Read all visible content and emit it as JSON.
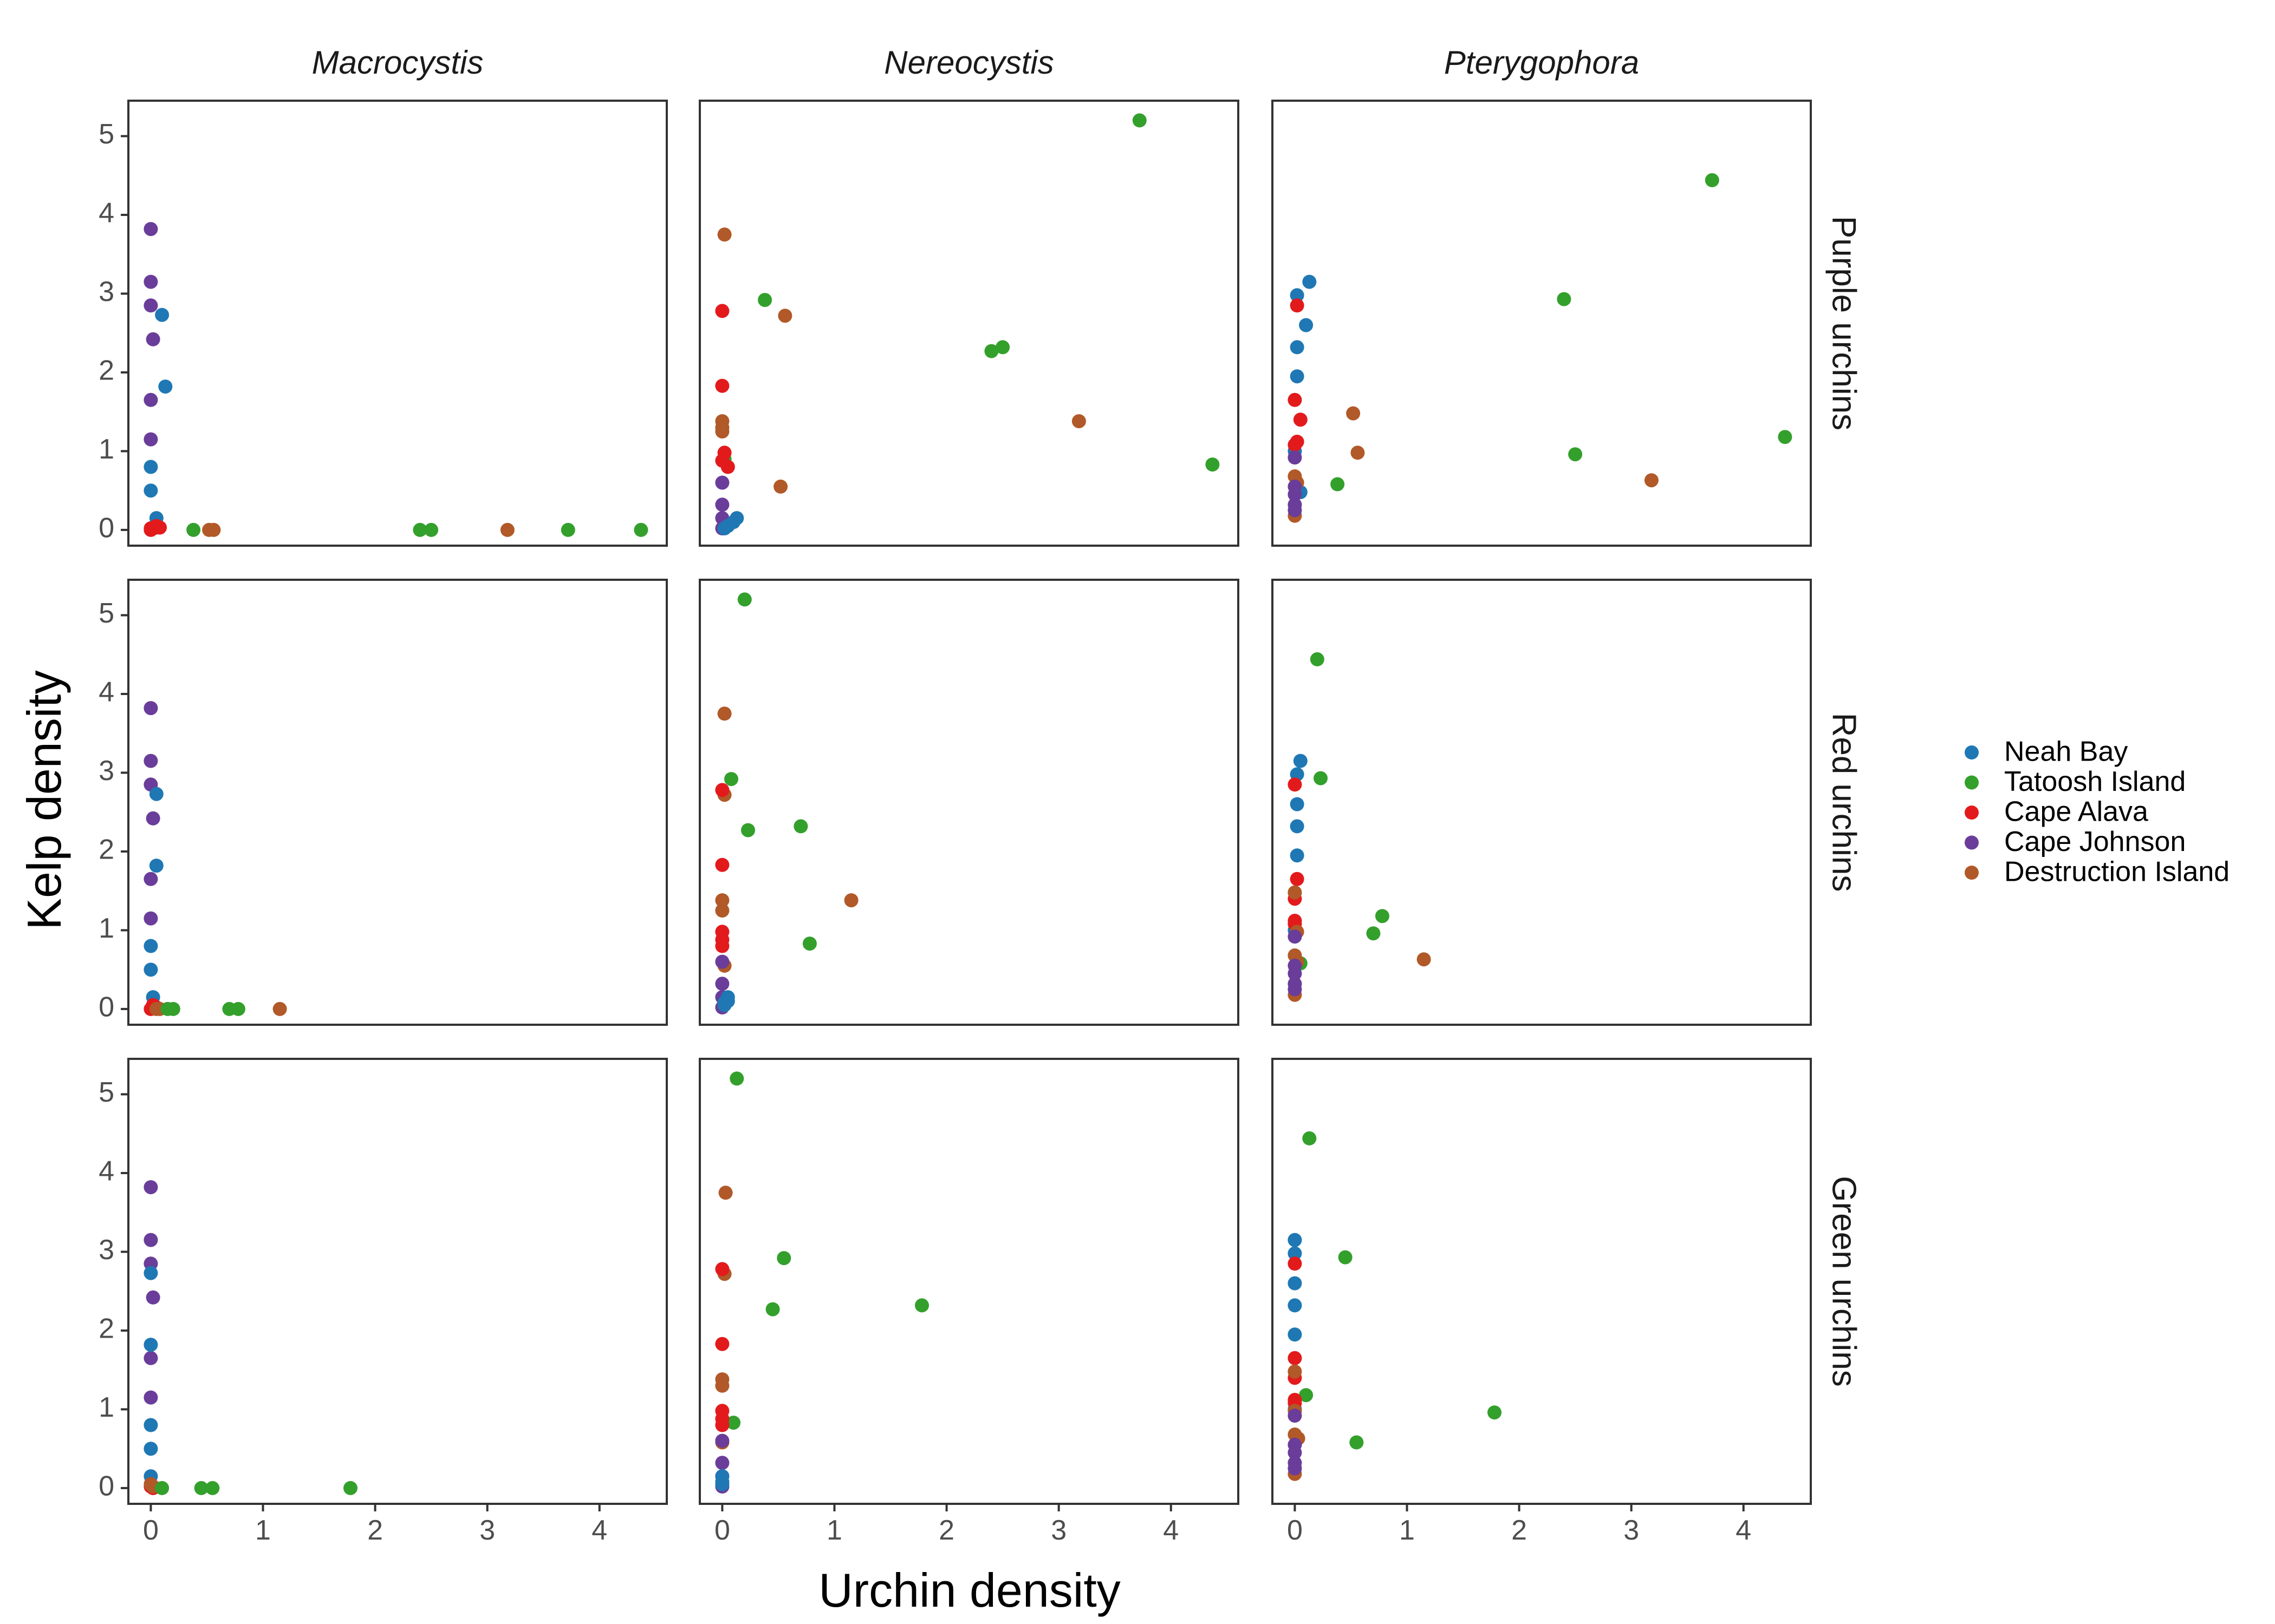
{
  "chart_data": {
    "type": "scatter",
    "xlabel": "Urchin density",
    "ylabel": "Kelp density",
    "xlim": [
      -0.2,
      4.6
    ],
    "ylim": [
      -0.2,
      5.45
    ],
    "x_ticks": [
      0,
      1,
      2,
      3,
      4
    ],
    "y_ticks": [
      0,
      1,
      2,
      3,
      4,
      5
    ],
    "grid": false,
    "legend_position": "right",
    "columns": [
      "Macrocystis",
      "Nereocystis",
      "Pterygophora"
    ],
    "rows": [
      "Purple urchins",
      "Red urchins",
      "Green urchins"
    ],
    "series": [
      {
        "name": "Neah Bay",
        "color": "#1f78b4"
      },
      {
        "name": "Tatoosh Island",
        "color": "#33a02c"
      },
      {
        "name": "Cape Alava",
        "color": "#e31a1c"
      },
      {
        "name": "Cape Johnson",
        "color": "#6a3d9a"
      },
      {
        "name": "Destruction Island",
        "color": "#b15928"
      }
    ],
    "panels": [
      {
        "row": 0,
        "col": 0,
        "points": [
          [
            3,
            0,
            3.82
          ],
          [
            3,
            0,
            3.15
          ],
          [
            3,
            0,
            2.85
          ],
          [
            3,
            0.02,
            2.42
          ],
          [
            3,
            0,
            1.65
          ],
          [
            3,
            0,
            1.15
          ],
          [
            3,
            0.02,
            0.03
          ],
          [
            0,
            0.1,
            2.73
          ],
          [
            0,
            0.13,
            1.82
          ],
          [
            0,
            0,
            0.8
          ],
          [
            0,
            0,
            0.5
          ],
          [
            0,
            0.05,
            0.15
          ],
          [
            0,
            0.05,
            0.03
          ],
          [
            2,
            0,
            0
          ],
          [
            2,
            0.02,
            0.02
          ],
          [
            2,
            0.05,
            0.05
          ],
          [
            2,
            0.08,
            0.03
          ],
          [
            2,
            0,
            0.02
          ],
          [
            1,
            0.38,
            0
          ],
          [
            1,
            2.4,
            0
          ],
          [
            1,
            2.5,
            0
          ],
          [
            1,
            3.72,
            0
          ],
          [
            1,
            4.37,
            0
          ],
          [
            4,
            0.52,
            0
          ],
          [
            4,
            0.56,
            0
          ],
          [
            4,
            3.18,
            0
          ]
        ]
      },
      {
        "row": 0,
        "col": 1,
        "points": [
          [
            1,
            3.72,
            5.2
          ],
          [
            1,
            0.38,
            2.92
          ],
          [
            1,
            2.4,
            2.27
          ],
          [
            1,
            2.5,
            2.32
          ],
          [
            1,
            4.37,
            0.83
          ],
          [
            1,
            0.02,
            0.9
          ],
          [
            4,
            0.02,
            3.75
          ],
          [
            4,
            0.56,
            2.72
          ],
          [
            4,
            3.18,
            1.38
          ],
          [
            4,
            0.52,
            0.55
          ],
          [
            4,
            0,
            1.38
          ],
          [
            4,
            0,
            1.3
          ],
          [
            4,
            0,
            1.25
          ],
          [
            2,
            0,
            2.78
          ],
          [
            2,
            0,
            1.83
          ],
          [
            2,
            0.02,
            0.98
          ],
          [
            2,
            0,
            0.88
          ],
          [
            2,
            0.05,
            0.8
          ],
          [
            3,
            0,
            0.6
          ],
          [
            3,
            0,
            0.32
          ],
          [
            3,
            0,
            0.15
          ],
          [
            3,
            0,
            0.02
          ],
          [
            3,
            0.02,
            0.08
          ],
          [
            0,
            0.13,
            0.15
          ],
          [
            0,
            0.05,
            0.05
          ],
          [
            0,
            0.1,
            0.1
          ],
          [
            0,
            0.02,
            0.02
          ]
        ]
      },
      {
        "row": 0,
        "col": 2,
        "points": [
          [
            1,
            3.72,
            4.44
          ],
          [
            1,
            2.4,
            2.93
          ],
          [
            1,
            4.37,
            1.18
          ],
          [
            1,
            2.5,
            0.96
          ],
          [
            1,
            0.38,
            0.58
          ],
          [
            0,
            0.13,
            3.15
          ],
          [
            0,
            0.02,
            2.98
          ],
          [
            0,
            0.1,
            2.6
          ],
          [
            0,
            0.02,
            2.32
          ],
          [
            0,
            0.02,
            1.95
          ],
          [
            0,
            0,
            1.0
          ],
          [
            0,
            0.05,
            0.48
          ],
          [
            2,
            0.02,
            2.85
          ],
          [
            2,
            0,
            1.65
          ],
          [
            2,
            0.05,
            1.4
          ],
          [
            2,
            0.02,
            1.12
          ],
          [
            2,
            0,
            1.08
          ],
          [
            4,
            0.52,
            1.48
          ],
          [
            4,
            0.56,
            0.98
          ],
          [
            4,
            3.18,
            0.63
          ],
          [
            4,
            0,
            0.68
          ],
          [
            4,
            0.02,
            0.6
          ],
          [
            4,
            0,
            0.18
          ],
          [
            3,
            0,
            0.92
          ],
          [
            3,
            0,
            0.55
          ],
          [
            3,
            0,
            0.45
          ],
          [
            3,
            0,
            0.32
          ],
          [
            3,
            0,
            0.25
          ]
        ]
      },
      {
        "row": 1,
        "col": 0,
        "points": [
          [
            3,
            0,
            3.82
          ],
          [
            3,
            0,
            3.15
          ],
          [
            3,
            0,
            2.85
          ],
          [
            3,
            0.02,
            2.42
          ],
          [
            3,
            0,
            1.65
          ],
          [
            3,
            0,
            1.15
          ],
          [
            3,
            0.02,
            0.03
          ],
          [
            0,
            0.05,
            2.73
          ],
          [
            0,
            0.05,
            1.82
          ],
          [
            0,
            0,
            0.8
          ],
          [
            0,
            0,
            0.5
          ],
          [
            0,
            0.02,
            0.15
          ],
          [
            2,
            0,
            0
          ],
          [
            2,
            0.02,
            0.03
          ],
          [
            2,
            0.05,
            0.02
          ],
          [
            2,
            0.02,
            0.05
          ],
          [
            4,
            0.05,
            0
          ],
          [
            4,
            0.08,
            0
          ],
          [
            4,
            1.15,
            0
          ],
          [
            1,
            0.15,
            0
          ],
          [
            1,
            0.2,
            0
          ],
          [
            1,
            0.7,
            0
          ],
          [
            1,
            0.78,
            0
          ]
        ]
      },
      {
        "row": 1,
        "col": 1,
        "points": [
          [
            1,
            0.2,
            5.2
          ],
          [
            1,
            0.08,
            2.92
          ],
          [
            1,
            0.23,
            2.27
          ],
          [
            1,
            0.7,
            2.32
          ],
          [
            1,
            0.78,
            0.83
          ],
          [
            4,
            0.02,
            3.75
          ],
          [
            4,
            0.02,
            2.72
          ],
          [
            4,
            1.15,
            1.38
          ],
          [
            4,
            0,
            1.38
          ],
          [
            4,
            0,
            1.25
          ],
          [
            4,
            0.02,
            0.55
          ],
          [
            2,
            0,
            2.78
          ],
          [
            2,
            0,
            1.83
          ],
          [
            2,
            0,
            0.98
          ],
          [
            2,
            0,
            0.88
          ],
          [
            2,
            0,
            0.8
          ],
          [
            3,
            0,
            0.6
          ],
          [
            3,
            0,
            0.32
          ],
          [
            3,
            0,
            0.15
          ],
          [
            3,
            0,
            0.02
          ],
          [
            0,
            0.05,
            0.15
          ],
          [
            0,
            0.02,
            0.08
          ],
          [
            0,
            0.05,
            0.1
          ],
          [
            0,
            0.02,
            0.05
          ]
        ]
      },
      {
        "row": 1,
        "col": 2,
        "points": [
          [
            1,
            0.2,
            4.44
          ],
          [
            1,
            0.23,
            2.93
          ],
          [
            1,
            0.78,
            1.18
          ],
          [
            1,
            0.7,
            0.96
          ],
          [
            1,
            0.05,
            0.58
          ],
          [
            0,
            0.05,
            3.15
          ],
          [
            0,
            0.02,
            2.98
          ],
          [
            0,
            0.02,
            2.6
          ],
          [
            0,
            0.02,
            2.32
          ],
          [
            0,
            0.02,
            1.95
          ],
          [
            0,
            0,
            1.0
          ],
          [
            2,
            0,
            2.85
          ],
          [
            2,
            0.02,
            1.65
          ],
          [
            2,
            0,
            1.4
          ],
          [
            2,
            0,
            1.12
          ],
          [
            2,
            0,
            1.08
          ],
          [
            4,
            0,
            1.48
          ],
          [
            4,
            0.02,
            0.98
          ],
          [
            4,
            1.15,
            0.63
          ],
          [
            4,
            0,
            0.68
          ],
          [
            4,
            0.02,
            0.6
          ],
          [
            4,
            0,
            0.18
          ],
          [
            3,
            0,
            0.92
          ],
          [
            3,
            0,
            0.55
          ],
          [
            3,
            0,
            0.45
          ],
          [
            3,
            0,
            0.32
          ],
          [
            3,
            0,
            0.25
          ]
        ]
      },
      {
        "row": 2,
        "col": 0,
        "points": [
          [
            3,
            0,
            3.82
          ],
          [
            3,
            0,
            3.15
          ],
          [
            3,
            0,
            2.85
          ],
          [
            3,
            0.02,
            2.42
          ],
          [
            3,
            0,
            1.65
          ],
          [
            3,
            0,
            1.15
          ],
          [
            0,
            0,
            2.73
          ],
          [
            0,
            0,
            1.82
          ],
          [
            0,
            0,
            0.8
          ],
          [
            0,
            0,
            0.5
          ],
          [
            0,
            0,
            0.15
          ],
          [
            2,
            0,
            0.02
          ],
          [
            2,
            0.02,
            0
          ],
          [
            4,
            0,
            0.05
          ],
          [
            4,
            0.02,
            0.02
          ],
          [
            1,
            0.1,
            0
          ],
          [
            1,
            0.45,
            0
          ],
          [
            1,
            0.55,
            0
          ],
          [
            1,
            1.78,
            0
          ]
        ]
      },
      {
        "row": 2,
        "col": 1,
        "points": [
          [
            1,
            0.13,
            5.2
          ],
          [
            1,
            0.55,
            2.92
          ],
          [
            1,
            0.45,
            2.27
          ],
          [
            1,
            1.78,
            2.32
          ],
          [
            1,
            0.1,
            0.83
          ],
          [
            4,
            0.03,
            3.75
          ],
          [
            4,
            0.02,
            2.72
          ],
          [
            4,
            0,
            1.38
          ],
          [
            4,
            0,
            1.3
          ],
          [
            4,
            0,
            0.58
          ],
          [
            2,
            0,
            2.78
          ],
          [
            2,
            0,
            1.83
          ],
          [
            2,
            0,
            0.98
          ],
          [
            2,
            0,
            0.88
          ],
          [
            2,
            0,
            0.8
          ],
          [
            3,
            0,
            0.6
          ],
          [
            3,
            0,
            0.32
          ],
          [
            3,
            0,
            0.15
          ],
          [
            3,
            0,
            0.02
          ],
          [
            0,
            0,
            0.15
          ],
          [
            0,
            0,
            0.08
          ],
          [
            0,
            0,
            0.05
          ]
        ]
      },
      {
        "row": 2,
        "col": 2,
        "points": [
          [
            1,
            0.13,
            4.44
          ],
          [
            1,
            0.45,
            2.93
          ],
          [
            1,
            0.1,
            1.18
          ],
          [
            1,
            1.78,
            0.96
          ],
          [
            1,
            0.55,
            0.58
          ],
          [
            0,
            0,
            3.15
          ],
          [
            0,
            0,
            2.98
          ],
          [
            0,
            0,
            2.6
          ],
          [
            0,
            0,
            2.32
          ],
          [
            0,
            0,
            1.95
          ],
          [
            0,
            0,
            1.0
          ],
          [
            2,
            0,
            2.85
          ],
          [
            2,
            0,
            1.65
          ],
          [
            2,
            0,
            1.4
          ],
          [
            2,
            0,
            1.12
          ],
          [
            2,
            0,
            1.08
          ],
          [
            4,
            0,
            1.48
          ],
          [
            4,
            0,
            0.98
          ],
          [
            4,
            0.03,
            0.63
          ],
          [
            4,
            0,
            0.68
          ],
          [
            4,
            0,
            0.18
          ],
          [
            3,
            0,
            0.92
          ],
          [
            3,
            0,
            0.55
          ],
          [
            3,
            0,
            0.45
          ],
          [
            3,
            0,
            0.32
          ],
          [
            3,
            0,
            0.25
          ]
        ]
      }
    ]
  }
}
